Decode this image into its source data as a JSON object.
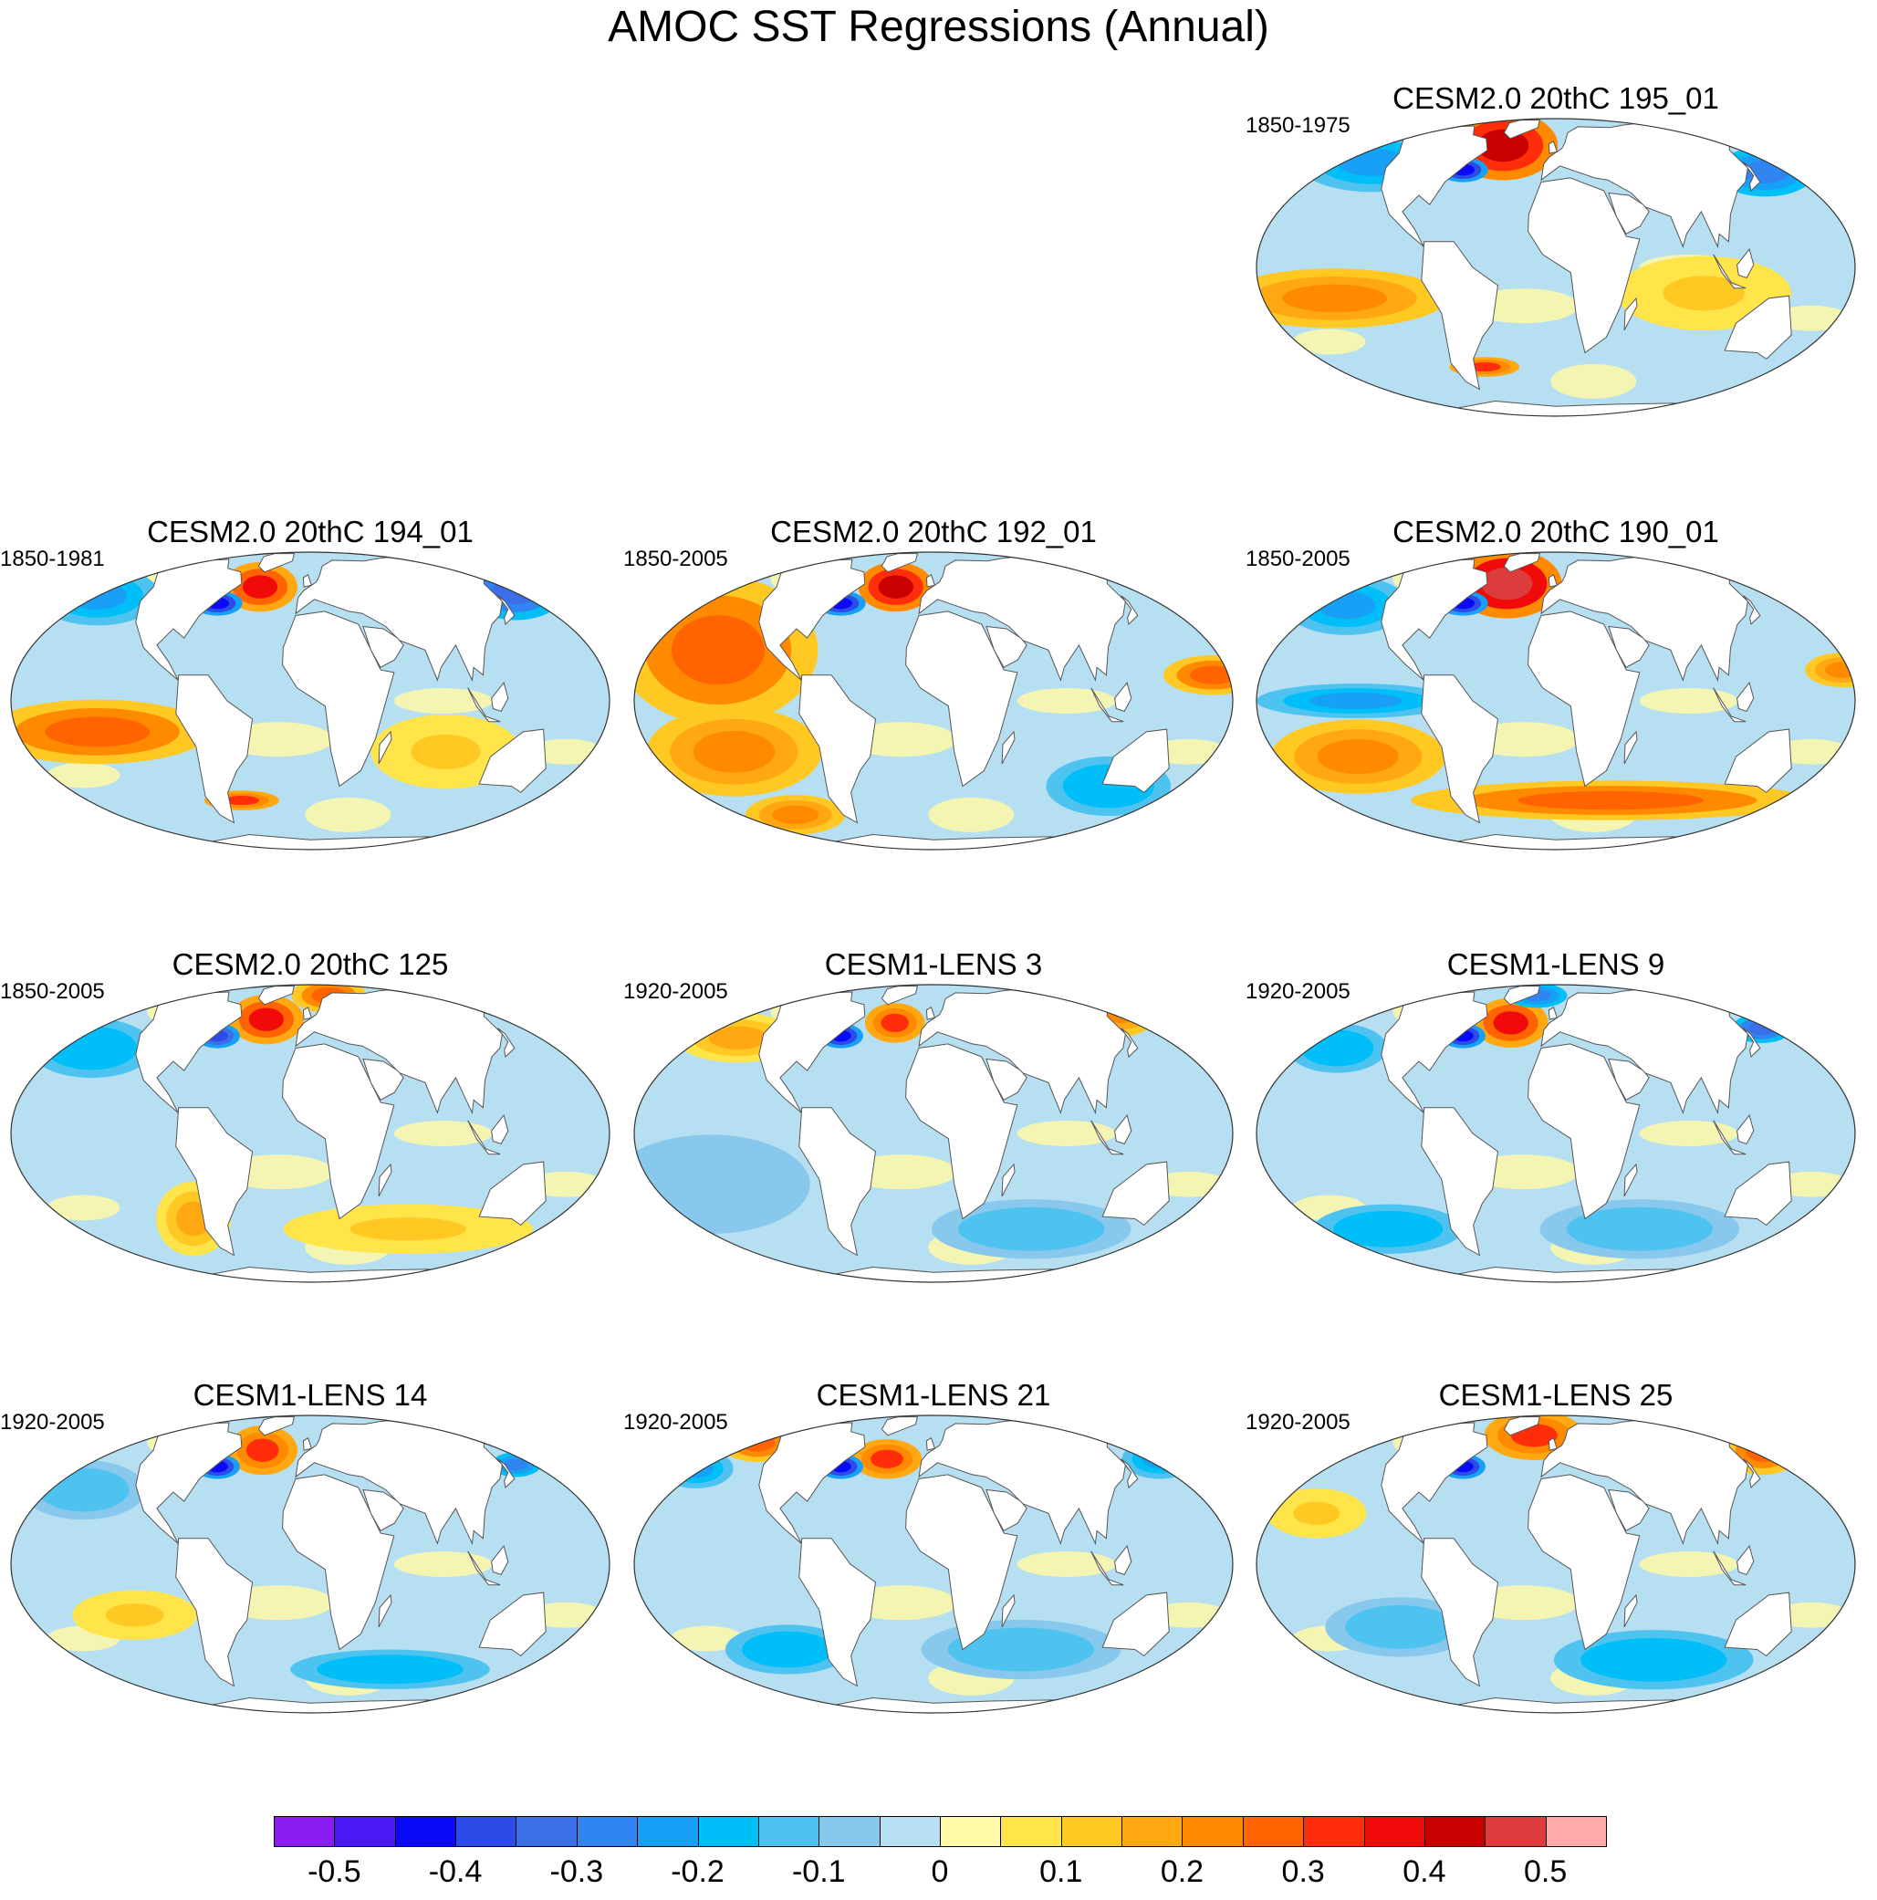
{
  "title": "AMOC SST Regressions (Annual)",
  "panels": [
    {
      "title": "CESM2.0 20thC 195_01",
      "years": "1850-1975",
      "features": [
        {
          "lon": -45,
          "lat": 55,
          "v": 0.4,
          "rx": 22,
          "ry": 14
        },
        {
          "lon": -67,
          "lat": 41,
          "v": -0.45,
          "rx": 10,
          "ry": 5
        },
        {
          "lon": -138,
          "lat": 45,
          "v": -0.25,
          "rx": 30,
          "ry": 12
        },
        {
          "lon": 150,
          "lat": 40,
          "v": -0.3,
          "rx": 20,
          "ry": 10
        },
        {
          "lon": -135,
          "lat": -12,
          "v": 0.2,
          "rx": 45,
          "ry": 12
        },
        {
          "lon": 90,
          "lat": -10,
          "v": 0.1,
          "rx": 35,
          "ry": 15
        },
        {
          "lon": -52,
          "lat": -42,
          "v": 0.3,
          "rx": 14,
          "ry": 4
        }
      ]
    },
    {
      "title": "CESM2.0 20thC 194_01",
      "years": "1850-1981",
      "features": [
        {
          "lon": -40,
          "lat": 50,
          "v": 0.35,
          "rx": 15,
          "ry": 10
        },
        {
          "lon": -67,
          "lat": 41,
          "v": -0.45,
          "rx": 10,
          "ry": 5
        },
        {
          "lon": -160,
          "lat": 45,
          "v": -0.25,
          "rx": 25,
          "ry": 12
        },
        {
          "lon": 160,
          "lat": 48,
          "v": -0.35,
          "rx": 20,
          "ry": 12
        },
        {
          "lon": -130,
          "lat": -12,
          "v": 0.25,
          "rx": 45,
          "ry": 13
        },
        {
          "lon": -50,
          "lat": -42,
          "v": 0.3,
          "rx": 15,
          "ry": 4
        },
        {
          "lon": 85,
          "lat": -20,
          "v": 0.1,
          "rx": 30,
          "ry": 15
        }
      ]
    },
    {
      "title": "CESM2.0 20thC 192_01",
      "years": "1850-2005",
      "features": [
        {
          "lon": -30,
          "lat": 50,
          "v": 0.4,
          "rx": 15,
          "ry": 10
        },
        {
          "lon": -67,
          "lat": 41,
          "v": -0.45,
          "rx": 10,
          "ry": 5
        },
        {
          "lon": -135,
          "lat": 20,
          "v": 0.25,
          "rx": 40,
          "ry": 30
        },
        {
          "lon": -125,
          "lat": -20,
          "v": 0.2,
          "rx": 35,
          "ry": 18
        },
        {
          "lon": 170,
          "lat": 10,
          "v": 0.25,
          "rx": 20,
          "ry": 8
        },
        {
          "lon": 120,
          "lat": -35,
          "v": -0.2,
          "rx": 25,
          "ry": 12
        },
        {
          "lon": -110,
          "lat": -50,
          "v": 0.2,
          "rx": 20,
          "ry": 8
        }
      ]
    },
    {
      "title": "CESM2.0 20thC 190_01",
      "years": "1850-2005",
      "features": [
        {
          "lon": -40,
          "lat": 52,
          "v": 0.45,
          "rx": 22,
          "ry": 14
        },
        {
          "lon": -67,
          "lat": 41,
          "v": -0.45,
          "rx": 10,
          "ry": 5
        },
        {
          "lon": -150,
          "lat": 40,
          "v": -0.25,
          "rx": 25,
          "ry": 12
        },
        {
          "lon": -120,
          "lat": 0,
          "v": -0.25,
          "rx": 40,
          "ry": 7
        },
        {
          "lon": -125,
          "lat": -22,
          "v": 0.2,
          "rx": 35,
          "ry": 15
        },
        {
          "lon": 40,
          "lat": -42,
          "v": 0.25,
          "rx": 80,
          "ry": 8
        },
        {
          "lon": 175,
          "lat": 12,
          "v": 0.2,
          "rx": 15,
          "ry": 7
        }
      ]
    },
    {
      "title": "CESM2.0 20thC 125",
      "years": "1850-2005",
      "features": [
        {
          "lon": -35,
          "lat": 50,
          "v": 0.35,
          "rx": 15,
          "ry": 10
        },
        {
          "lon": -67,
          "lat": 41,
          "v": -0.4,
          "rx": 9,
          "ry": 5
        },
        {
          "lon": 20,
          "lat": 68,
          "v": 0.25,
          "rx": 15,
          "ry": 7
        },
        {
          "lon": -150,
          "lat": 35,
          "v": -0.2,
          "rx": 25,
          "ry": 12
        },
        {
          "lon": -80,
          "lat": -35,
          "v": 0.15,
          "rx": 15,
          "ry": 15
        },
        {
          "lon": 70,
          "lat": -40,
          "v": 0.1,
          "rx": 50,
          "ry": 10
        }
      ]
    },
    {
      "title": "CESM1-LENS 3",
      "years": "1920-2005",
      "features": [
        {
          "lon": -30,
          "lat": 48,
          "v": 0.3,
          "rx": 12,
          "ry": 8
        },
        {
          "lon": -67,
          "lat": 41,
          "v": -0.45,
          "rx": 9,
          "ry": 5
        },
        {
          "lon": 160,
          "lat": 55,
          "v": 0.2,
          "rx": 15,
          "ry": 10
        },
        {
          "lon": -140,
          "lat": 40,
          "v": 0.15,
          "rx": 25,
          "ry": 10
        },
        {
          "lon": -140,
          "lat": -20,
          "v": -0.1,
          "rx": 40,
          "ry": 20
        },
        {
          "lon": 70,
          "lat": -40,
          "v": -0.15,
          "rx": 40,
          "ry": 12
        }
      ]
    },
    {
      "title": "CESM1-LENS 9",
      "years": "1920-2005",
      "features": [
        {
          "lon": -35,
          "lat": 48,
          "v": 0.35,
          "rx": 15,
          "ry": 10
        },
        {
          "lon": -67,
          "lat": 41,
          "v": -0.45,
          "rx": 9,
          "ry": 5
        },
        {
          "lon": 155,
          "lat": 45,
          "v": -0.35,
          "rx": 12,
          "ry": 6
        },
        {
          "lon": -20,
          "lat": 68,
          "v": -0.3,
          "rx": 12,
          "ry": 5
        },
        {
          "lon": -150,
          "lat": 35,
          "v": -0.2,
          "rx": 20,
          "ry": 10
        },
        {
          "lon": -120,
          "lat": -40,
          "v": -0.2,
          "rx": 30,
          "ry": 10
        },
        {
          "lon": 60,
          "lat": -40,
          "v": -0.15,
          "rx": 40,
          "ry": 12
        }
      ]
    },
    {
      "title": "CESM1-LENS 14",
      "years": "1920-2005",
      "features": [
        {
          "lon": -38,
          "lat": 50,
          "v": 0.3,
          "rx": 14,
          "ry": 10
        },
        {
          "lon": -67,
          "lat": 41,
          "v": -0.45,
          "rx": 9,
          "ry": 5
        },
        {
          "lon": 150,
          "lat": 42,
          "v": -0.3,
          "rx": 10,
          "ry": 5
        },
        {
          "lon": -150,
          "lat": 30,
          "v": -0.15,
          "rx": 25,
          "ry": 12
        },
        {
          "lon": 60,
          "lat": -45,
          "v": -0.2,
          "rx": 40,
          "ry": 8
        },
        {
          "lon": -110,
          "lat": -20,
          "v": 0.1,
          "rx": 25,
          "ry": 10
        }
      ]
    },
    {
      "title": "CESM1-LENS 21",
      "years": "1920-2005",
      "features": [
        {
          "lon": -35,
          "lat": 45,
          "v": 0.3,
          "rx": 14,
          "ry": 8
        },
        {
          "lon": -67,
          "lat": 41,
          "v": -0.45,
          "rx": 9,
          "ry": 5
        },
        {
          "lon": -150,
          "lat": 55,
          "v": 0.25,
          "rx": 15,
          "ry": 8
        },
        {
          "lon": -170,
          "lat": 40,
          "v": -0.25,
          "rx": 15,
          "ry": 8
        },
        {
          "lon": 170,
          "lat": 45,
          "v": -0.25,
          "rx": 15,
          "ry": 8
        },
        {
          "lon": -100,
          "lat": -35,
          "v": -0.2,
          "rx": 25,
          "ry": 10
        },
        {
          "lon": 60,
          "lat": -35,
          "v": -0.15,
          "rx": 40,
          "ry": 12
        }
      ]
    },
    {
      "title": "CESM1-LENS 25",
      "years": "1920-2005",
      "features": [
        {
          "lon": -20,
          "lat": 60,
          "v": 0.3,
          "rx": 20,
          "ry": 10
        },
        {
          "lon": -67,
          "lat": 41,
          "v": -0.45,
          "rx": 9,
          "ry": 5
        },
        {
          "lon": 165,
          "lat": 50,
          "v": 0.25,
          "rx": 15,
          "ry": 10
        },
        {
          "lon": -150,
          "lat": 20,
          "v": 0.1,
          "rx": 20,
          "ry": 10
        },
        {
          "lon": 70,
          "lat": -40,
          "v": -0.2,
          "rx": 40,
          "ry": 12
        },
        {
          "lon": -100,
          "lat": -25,
          "v": -0.15,
          "rx": 30,
          "ry": 12
        }
      ]
    }
  ],
  "colorbar": {
    "colors": [
      "#8a1ef0",
      "#4b19f5",
      "#0a0af8",
      "#2d4be6",
      "#3a6fe8",
      "#3085f0",
      "#17a0f5",
      "#00bff8",
      "#4fc3f0",
      "#87c8ec",
      "#b6dff2",
      "#fff9a8",
      "#ffe44a",
      "#ffc823",
      "#ffa812",
      "#ff8a00",
      "#ff6400",
      "#ff2d0a",
      "#f00a0a",
      "#c80000",
      "#dc3c3c",
      "#ffaaaa"
    ],
    "boundaries": [
      -0.55,
      -0.5,
      -0.45,
      -0.4,
      -0.35,
      -0.3,
      -0.25,
      -0.2,
      -0.15,
      -0.1,
      -0.05,
      0,
      0.05,
      0.1,
      0.15,
      0.2,
      0.25,
      0.3,
      0.35,
      0.4,
      0.45,
      0.5,
      0.55
    ],
    "labels": [
      "-0.5",
      "-0.4",
      "-0.3",
      "-0.2",
      "-0.1",
      "0",
      "0.1",
      "0.2",
      "0.3",
      "0.4",
      "0.5"
    ],
    "label_values": [
      -0.5,
      -0.4,
      -0.3,
      -0.2,
      -0.1,
      0,
      0.1,
      0.2,
      0.3,
      0.4,
      0.5
    ]
  }
}
